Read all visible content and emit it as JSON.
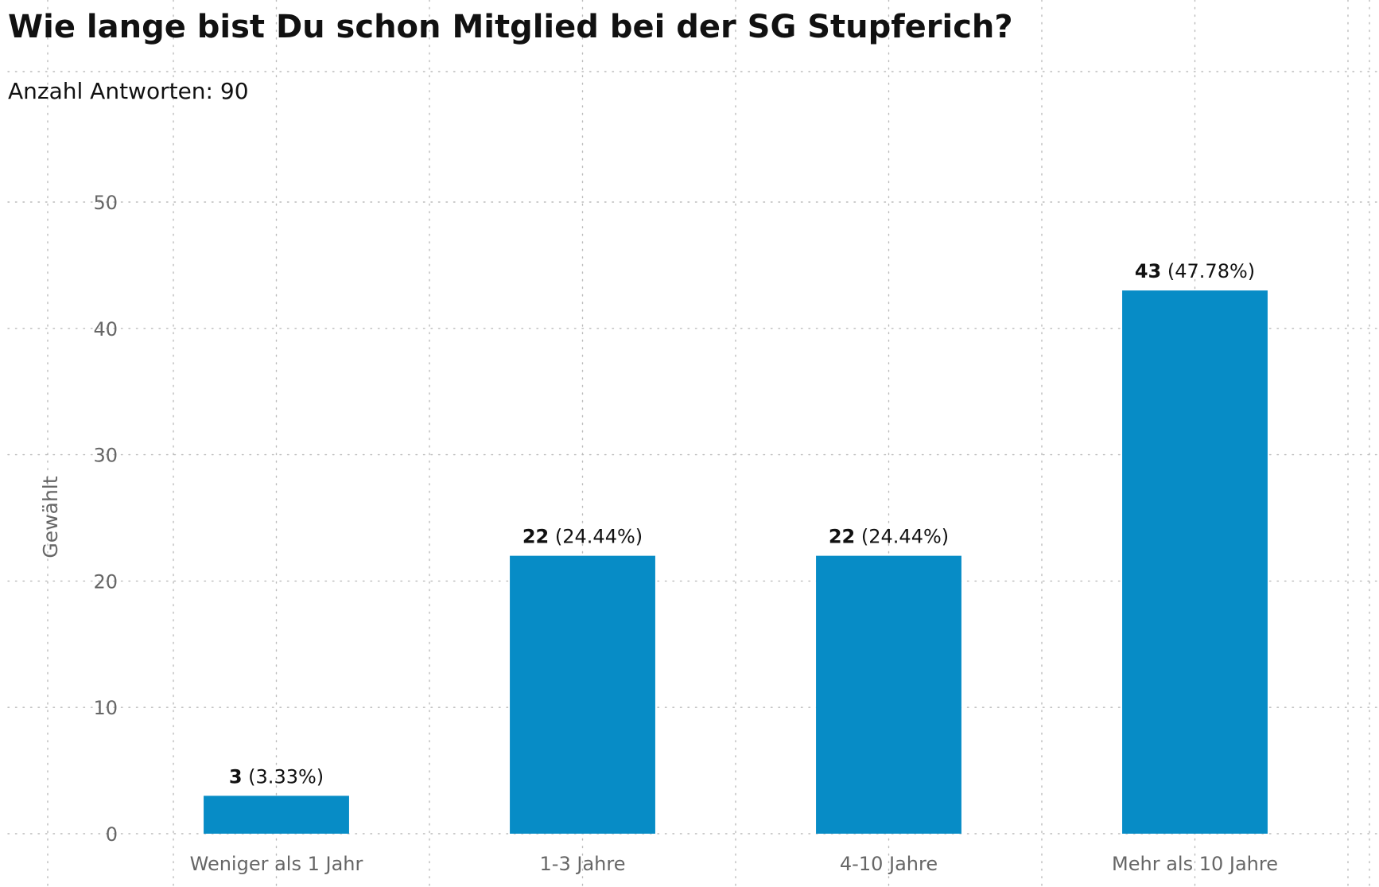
{
  "chart_data": {
    "type": "bar",
    "title": "Wie lange bist Du schon Mitglied bei der SG Stupferich?",
    "subtitle": "Anzahl Antworten: 90",
    "xlabel": "",
    "ylabel": "Gewählt",
    "categories": [
      "Weniger als 1 Jahr",
      "1-3 Jahre",
      "4-10 Jahre",
      "Mehr als 10 Jahre"
    ],
    "values": [
      3,
      22,
      22,
      43
    ],
    "value_labels": [
      {
        "count": "3",
        "percent": "(3.33%)"
      },
      {
        "count": "22",
        "percent": "(24.44%)"
      },
      {
        "count": "22",
        "percent": "(24.44%)"
      },
      {
        "count": "43",
        "percent": "(47.78%)"
      }
    ],
    "ylim": [
      0,
      50
    ],
    "yticks": [
      "0",
      "10",
      "20",
      "30",
      "40",
      "50"
    ],
    "grid": "dotted, horizontal and vertical",
    "legend": "none",
    "colors": {
      "bar": "#078CC6",
      "grid": "#BBBBBB",
      "tick_text": "#666666",
      "title_text": "#111111"
    }
  }
}
